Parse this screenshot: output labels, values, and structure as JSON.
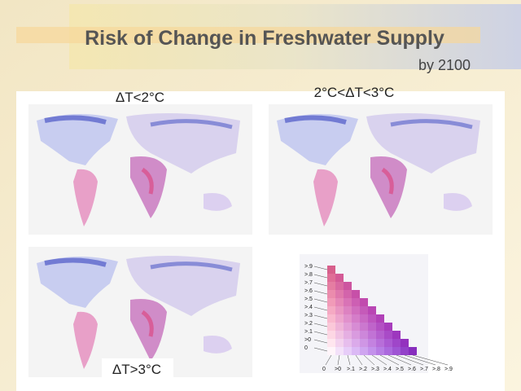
{
  "title": "Risk of Change in Freshwater Supply",
  "subtitle": "by 2100",
  "maps": [
    {
      "label": "ΔT<2°C"
    },
    {
      "label": "2°C<ΔT<3°C"
    },
    {
      "label": "ΔT>3°C"
    }
  ],
  "legend": {
    "y_labels": [
      ">.9",
      ">.8",
      ">.7",
      ">.6",
      ">.5",
      ">.4",
      ">.3",
      ">.2",
      ">.1",
      ">0",
      "0"
    ],
    "x_labels": [
      "0",
      ">0",
      ">.1",
      ">.2",
      ">.3",
      ">.4",
      ">.5",
      ">.6",
      ">.7",
      ">.8",
      ">.9"
    ]
  }
}
